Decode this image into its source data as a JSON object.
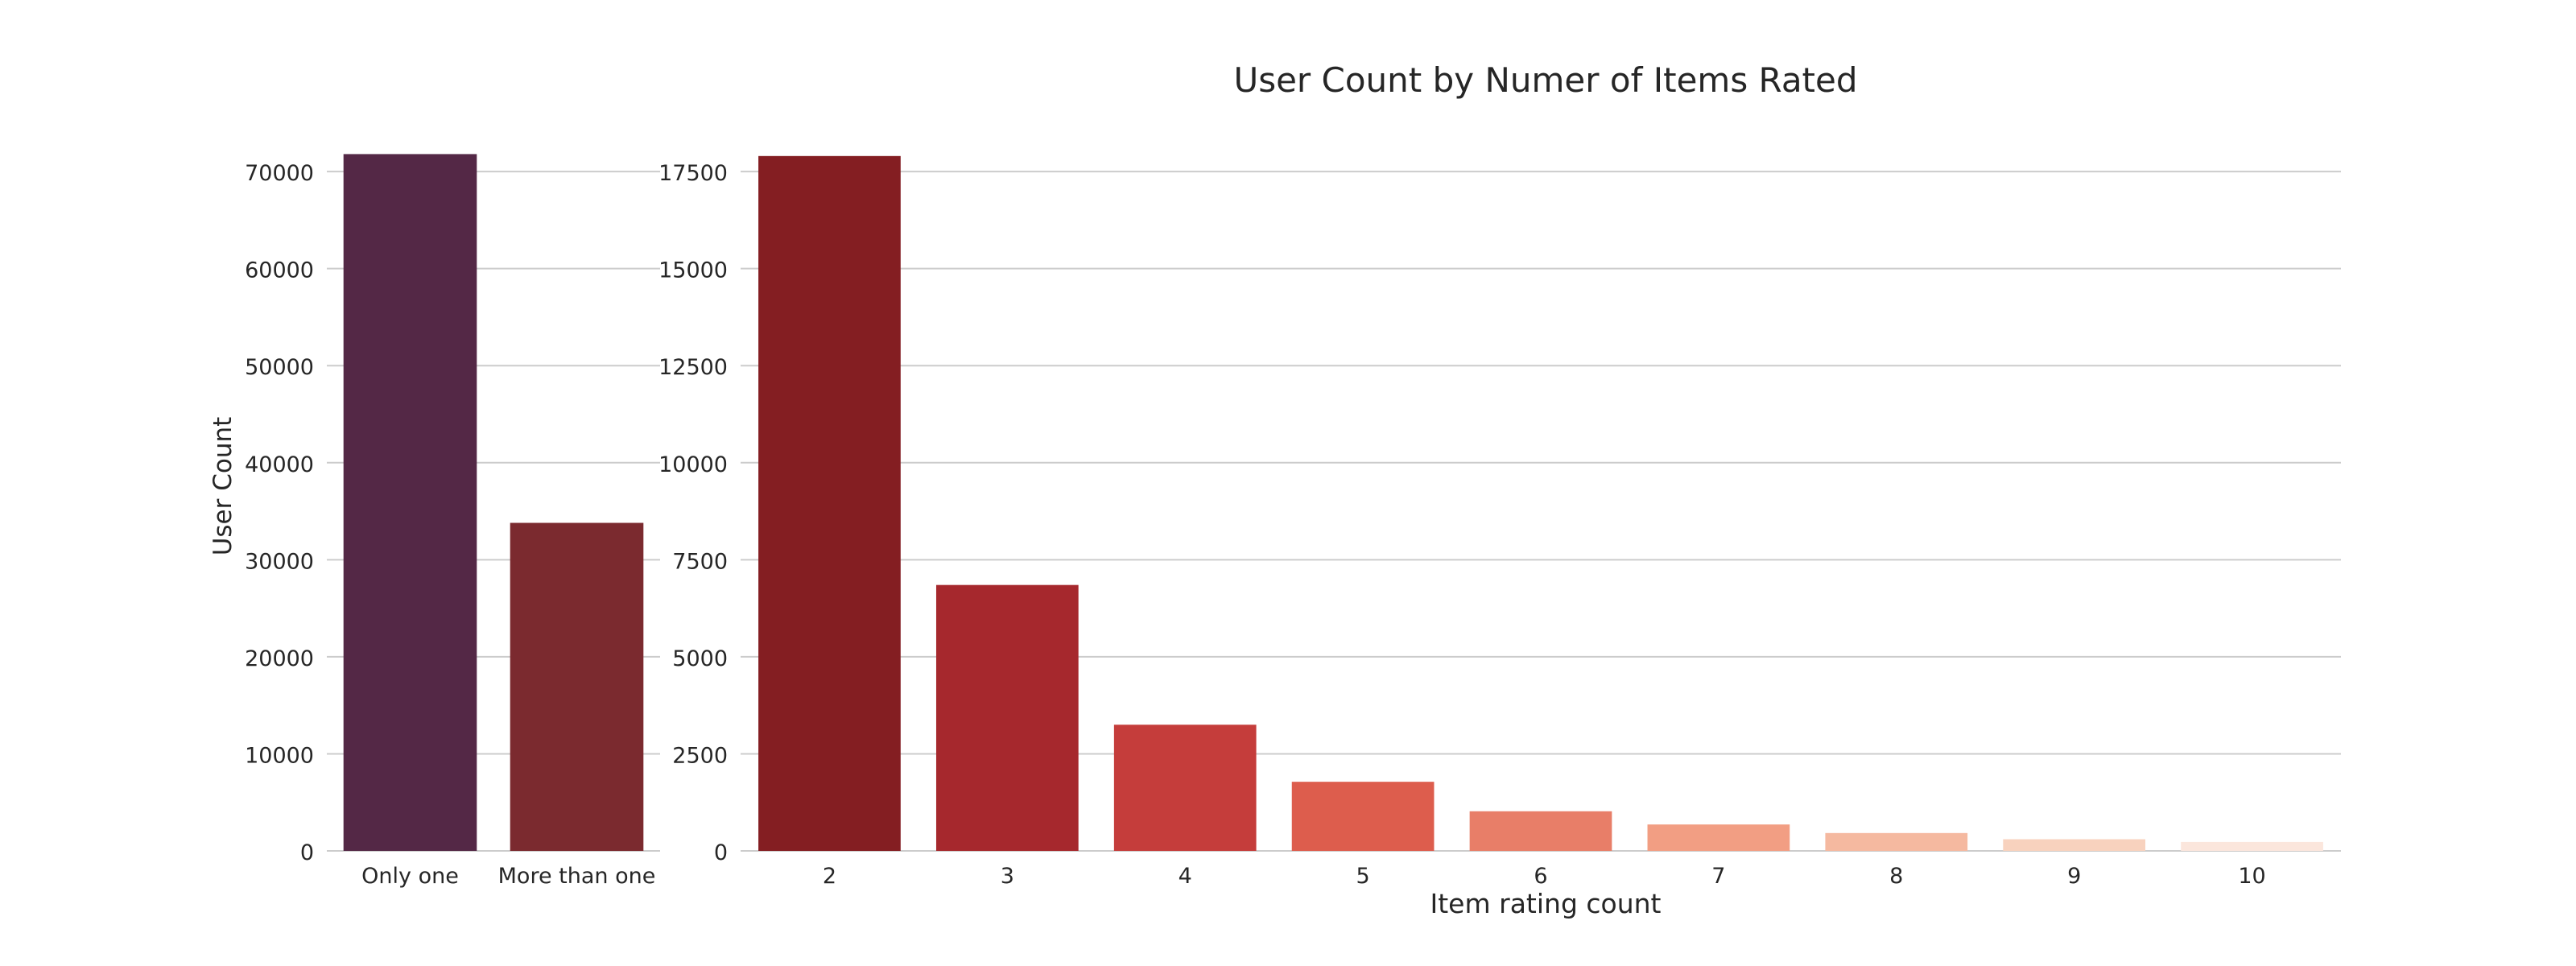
{
  "title": "User Count by Numer of Items Rated",
  "chart_data": [
    {
      "type": "bar",
      "categories": [
        "Only one",
        "More than one"
      ],
      "values": [
        71800,
        33800
      ],
      "ylabel": "User Count",
      "xlabel": "",
      "ylim": [
        0,
        72000
      ],
      "yticks": [
        0,
        10000,
        20000,
        30000,
        40000,
        50000,
        60000,
        70000
      ],
      "colors": [
        "#542846",
        "#7b2a2f"
      ],
      "grid": true
    },
    {
      "type": "bar",
      "categories": [
        "2",
        "3",
        "4",
        "5",
        "6",
        "7",
        "8",
        "9",
        "10"
      ],
      "values": [
        17900,
        6850,
        3250,
        1780,
        1020,
        680,
        460,
        300,
        230
      ],
      "xlabel": "Item rating count",
      "ylabel": "",
      "ylim": [
        0,
        18000
      ],
      "yticks": [
        0,
        2500,
        5000,
        7500,
        10000,
        12500,
        15000,
        17500
      ],
      "colors": [
        "#841e22",
        "#a6282d",
        "#c53d3b",
        "#dd5d4d",
        "#e87e68",
        "#f29e83",
        "#f5b9a0",
        "#f8d2be",
        "#fbe6dc"
      ],
      "grid": true
    }
  ]
}
